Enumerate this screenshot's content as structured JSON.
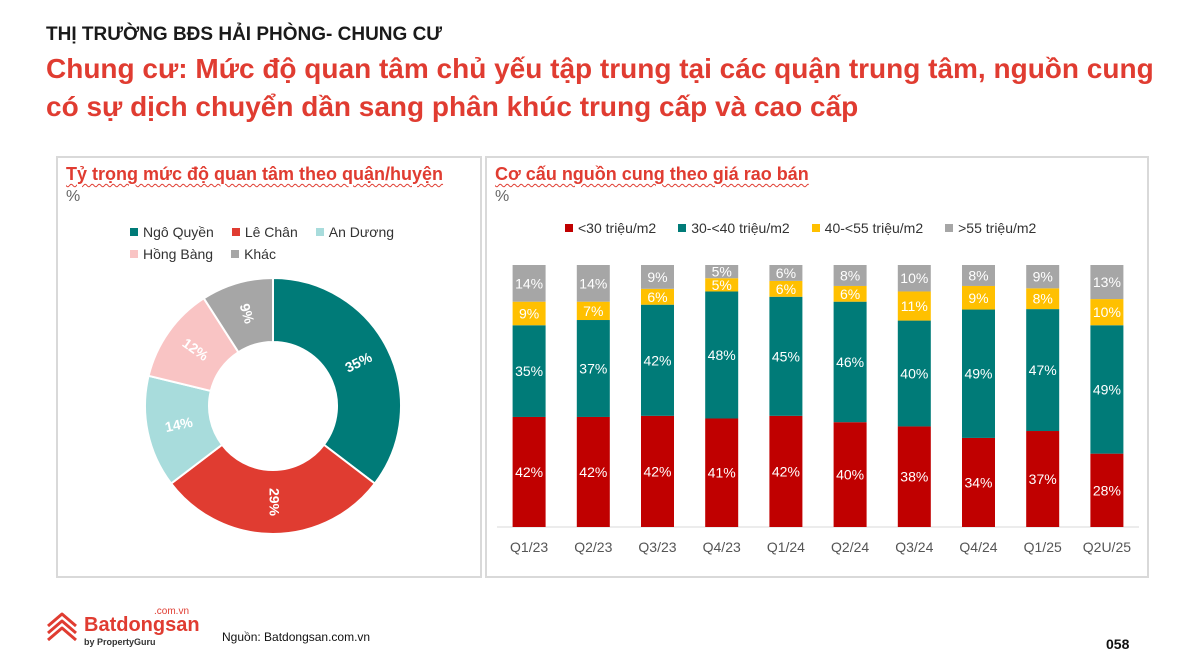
{
  "header": {
    "kicker": "THỊ TRƯỜNG BĐS HẢI PHÒNG- CHUNG CƯ",
    "headline": "Chung cư: Mức độ quan tâm chủ yếu tập trung tại các quận trung tâm, nguồn cung có sự dịch chuyển dần sang phân khúc trung cấp và cao cấp"
  },
  "footer": {
    "logo_text": "Batdongsan",
    "logo_domain": ".com.vn",
    "logo_sub": "by PropertyGuru",
    "source": "Nguồn: Batdongsan.com.vn",
    "page": "058"
  },
  "chart_data": [
    {
      "type": "pie",
      "title": "Tỷ trọng mức độ quan tâm theo quận/huyện",
      "unit": "%",
      "legend": "top",
      "labels": [
        "Ngô Quyền",
        "Lê Chân",
        "An Dương",
        "Hồng Bàng",
        "Khác"
      ],
      "values": [
        35,
        29,
        14,
        12,
        9
      ],
      "colors": [
        "#007b78",
        "#e03c31",
        "#a8dcdc",
        "#f9c4c4",
        "#a6a6a6"
      ]
    },
    {
      "type": "bar",
      "stacked": true,
      "title": "Cơ cấu nguồn cung theo giá rao bán",
      "unit": "%",
      "legend": "top",
      "categories": [
        "Q1/23",
        "Q2/23",
        "Q3/23",
        "Q4/23",
        "Q1/24",
        "Q2/24",
        "Q3/24",
        "Q4/24",
        "Q1/25",
        "Q2U/25"
      ],
      "series": [
        {
          "name": "<30 triệu/m2",
          "color": "#c00000",
          "values": [
            42,
            42,
            42,
            41,
            42,
            40,
            38,
            34,
            37,
            28
          ]
        },
        {
          "name": "30-<40 triệu/m2",
          "color": "#007b78",
          "values": [
            35,
            37,
            42,
            48,
            45,
            46,
            40,
            49,
            47,
            49
          ]
        },
        {
          "name": "40-<55 triệu/m2",
          "color": "#ffc000",
          "values": [
            9,
            7,
            6,
            5,
            6,
            6,
            11,
            9,
            8,
            10
          ]
        },
        {
          "name": ">55 triệu/m2",
          "color": "#a6a6a6",
          "values": [
            14,
            14,
            9,
            5,
            6,
            8,
            10,
            8,
            9,
            13
          ]
        }
      ]
    }
  ]
}
